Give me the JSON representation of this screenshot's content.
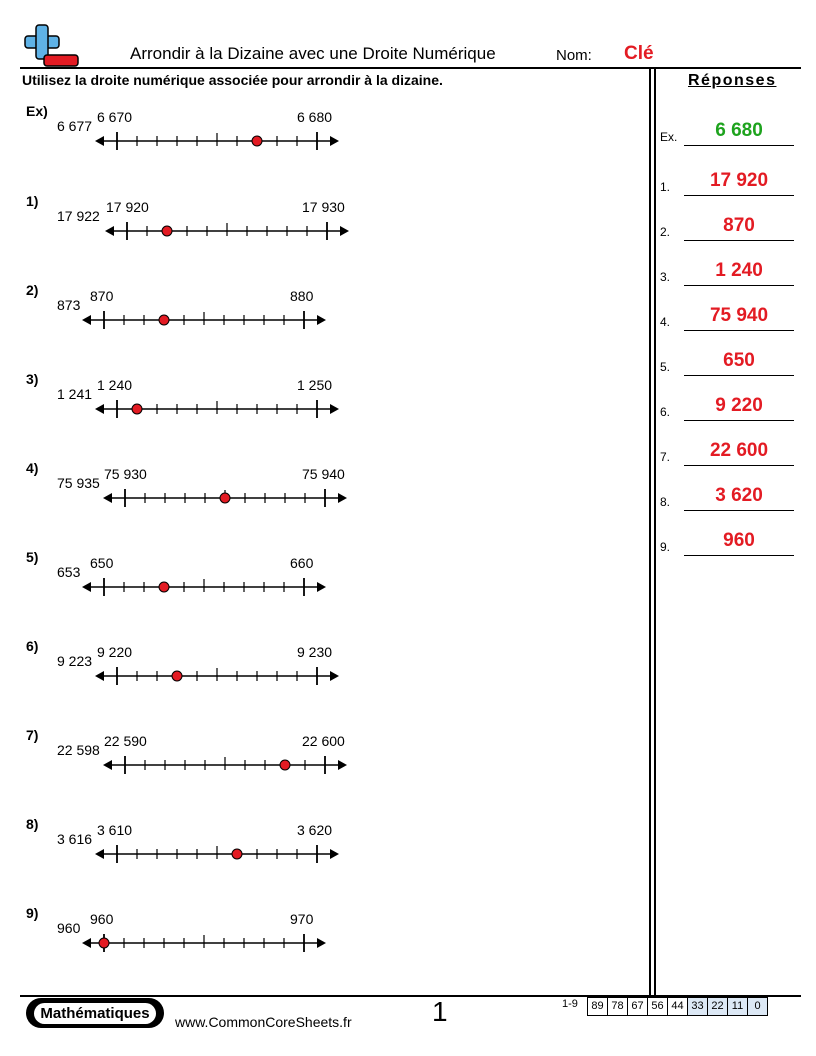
{
  "header": {
    "title": "Arrondir à la Dizaine avec une Droite Numérique",
    "name_label": "Nom:",
    "name_value": "Clé"
  },
  "instructions": "Utilisez la droite numérique associée pour arrondir à la dizaine.",
  "colors": {
    "answer": "#e31b23",
    "example_answer": "#1ea31e",
    "point": "#e31b23",
    "score_highlight": "#dce8f5"
  },
  "problems": [
    {
      "label": "Ex)",
      "value": "6 677",
      "left": "6 670",
      "right": "6 680",
      "answer": "6 680",
      "frac": 0.7
    },
    {
      "label": "1)",
      "value": "17 922",
      "left": "17 920",
      "right": "17 930",
      "answer": "17 920",
      "frac": 0.2
    },
    {
      "label": "2)",
      "value": "873",
      "left": "870",
      "right": "880",
      "answer": "870",
      "frac": 0.3
    },
    {
      "label": "3)",
      "value": "1 241",
      "left": "1 240",
      "right": "1 250",
      "answer": "1 240",
      "frac": 0.1
    },
    {
      "label": "4)",
      "value": "75 935",
      "left": "75 930",
      "right": "75 940",
      "answer": "75 940",
      "frac": 0.5
    },
    {
      "label": "5)",
      "value": "653",
      "left": "650",
      "right": "660",
      "answer": "650",
      "frac": 0.3
    },
    {
      "label": "6)",
      "value": "9 223",
      "left": "9 220",
      "right": "9 230",
      "answer": "9 220",
      "frac": 0.3
    },
    {
      "label": "7)",
      "value": "22 598",
      "left": "22 590",
      "right": "22 600",
      "answer": "22 600",
      "frac": 0.8
    },
    {
      "label": "8)",
      "value": "3 616",
      "left": "3 610",
      "right": "3 620",
      "answer": "3 620",
      "frac": 0.6
    },
    {
      "label": "9)",
      "value": "960",
      "left": "960",
      "right": "970",
      "answer": "960",
      "frac": 0.0
    }
  ],
  "answers": {
    "heading": "Réponses",
    "labels": [
      "Ex.",
      "1.",
      "2.",
      "3.",
      "4.",
      "5.",
      "6.",
      "7.",
      "8.",
      "9."
    ]
  },
  "footer": {
    "subject": "Mathématiques",
    "website": "www.CommonCoreSheets.fr",
    "page_number": "1",
    "score_label": "1-9",
    "scores": [
      "89",
      "78",
      "67",
      "56",
      "44",
      "33",
      "22",
      "11",
      "0"
    ],
    "scores_highlighted_from": 5
  }
}
